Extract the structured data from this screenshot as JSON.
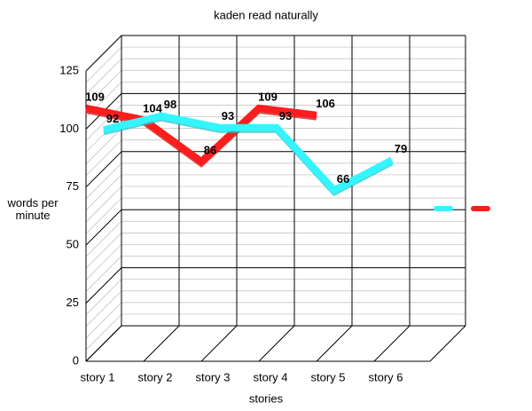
{
  "chart_data": {
    "type": "line3d",
    "title": "kaden read naturally",
    "x_label": "stories",
    "y_label": "words per minute",
    "categories": [
      "story 1",
      "story 2",
      "story 3",
      "story 4",
      "story 5",
      "story 6"
    ],
    "series": [
      {
        "color": "#33f5ff",
        "values": [
          92,
          98,
          93,
          93,
          66,
          79
        ]
      },
      {
        "color": "#ff1c1c",
        "values": [
          109,
          104,
          86,
          109,
          106,
          null
        ]
      }
    ],
    "ylim": [
      0,
      125
    ],
    "yticks": [
      0,
      25,
      50,
      75,
      100,
      125
    ],
    "grid": true
  }
}
